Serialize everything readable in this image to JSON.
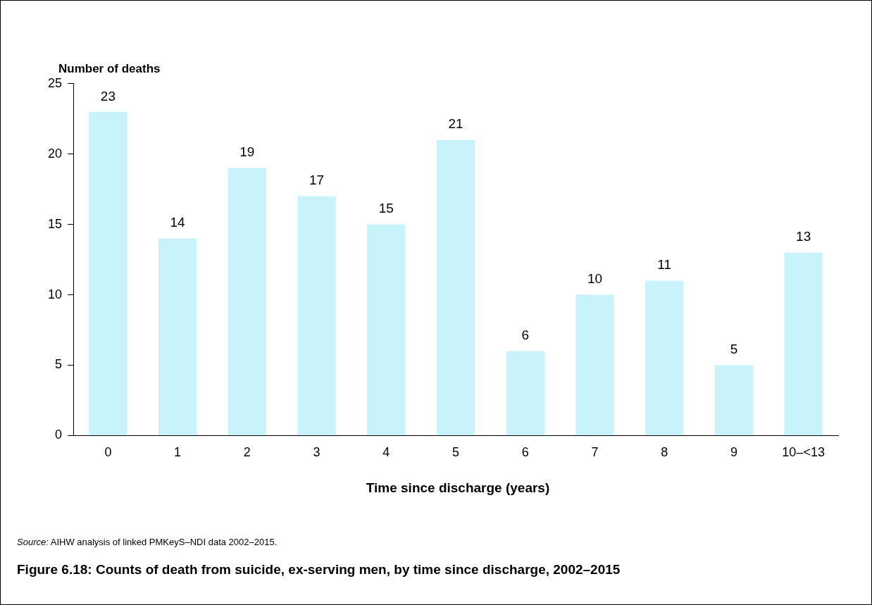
{
  "chart_data": {
    "type": "bar",
    "title": "Figure 6.18: Counts of death from suicide, ex-serving men, by time since discharge, 2002–2015",
    "xlabel": "Time since discharge (years)",
    "ylabel": "Number of deaths",
    "annotations": [
      "Source: AIHW analysis of linked PMKeyS–NDI data 2002–2015."
    ],
    "categories": [
      "0",
      "1",
      "2",
      "3",
      "4",
      "5",
      "6",
      "7",
      "8",
      "9",
      "10–<13"
    ],
    "values": [
      23,
      14,
      19,
      17,
      15,
      21,
      6,
      10,
      11,
      5,
      13
    ],
    "color": "#c9f3fb",
    "ylim": [
      0,
      25
    ],
    "yticks": [
      0,
      5,
      10,
      15,
      20,
      25
    ],
    "grid": false,
    "legend": false,
    "data_labels": true
  }
}
